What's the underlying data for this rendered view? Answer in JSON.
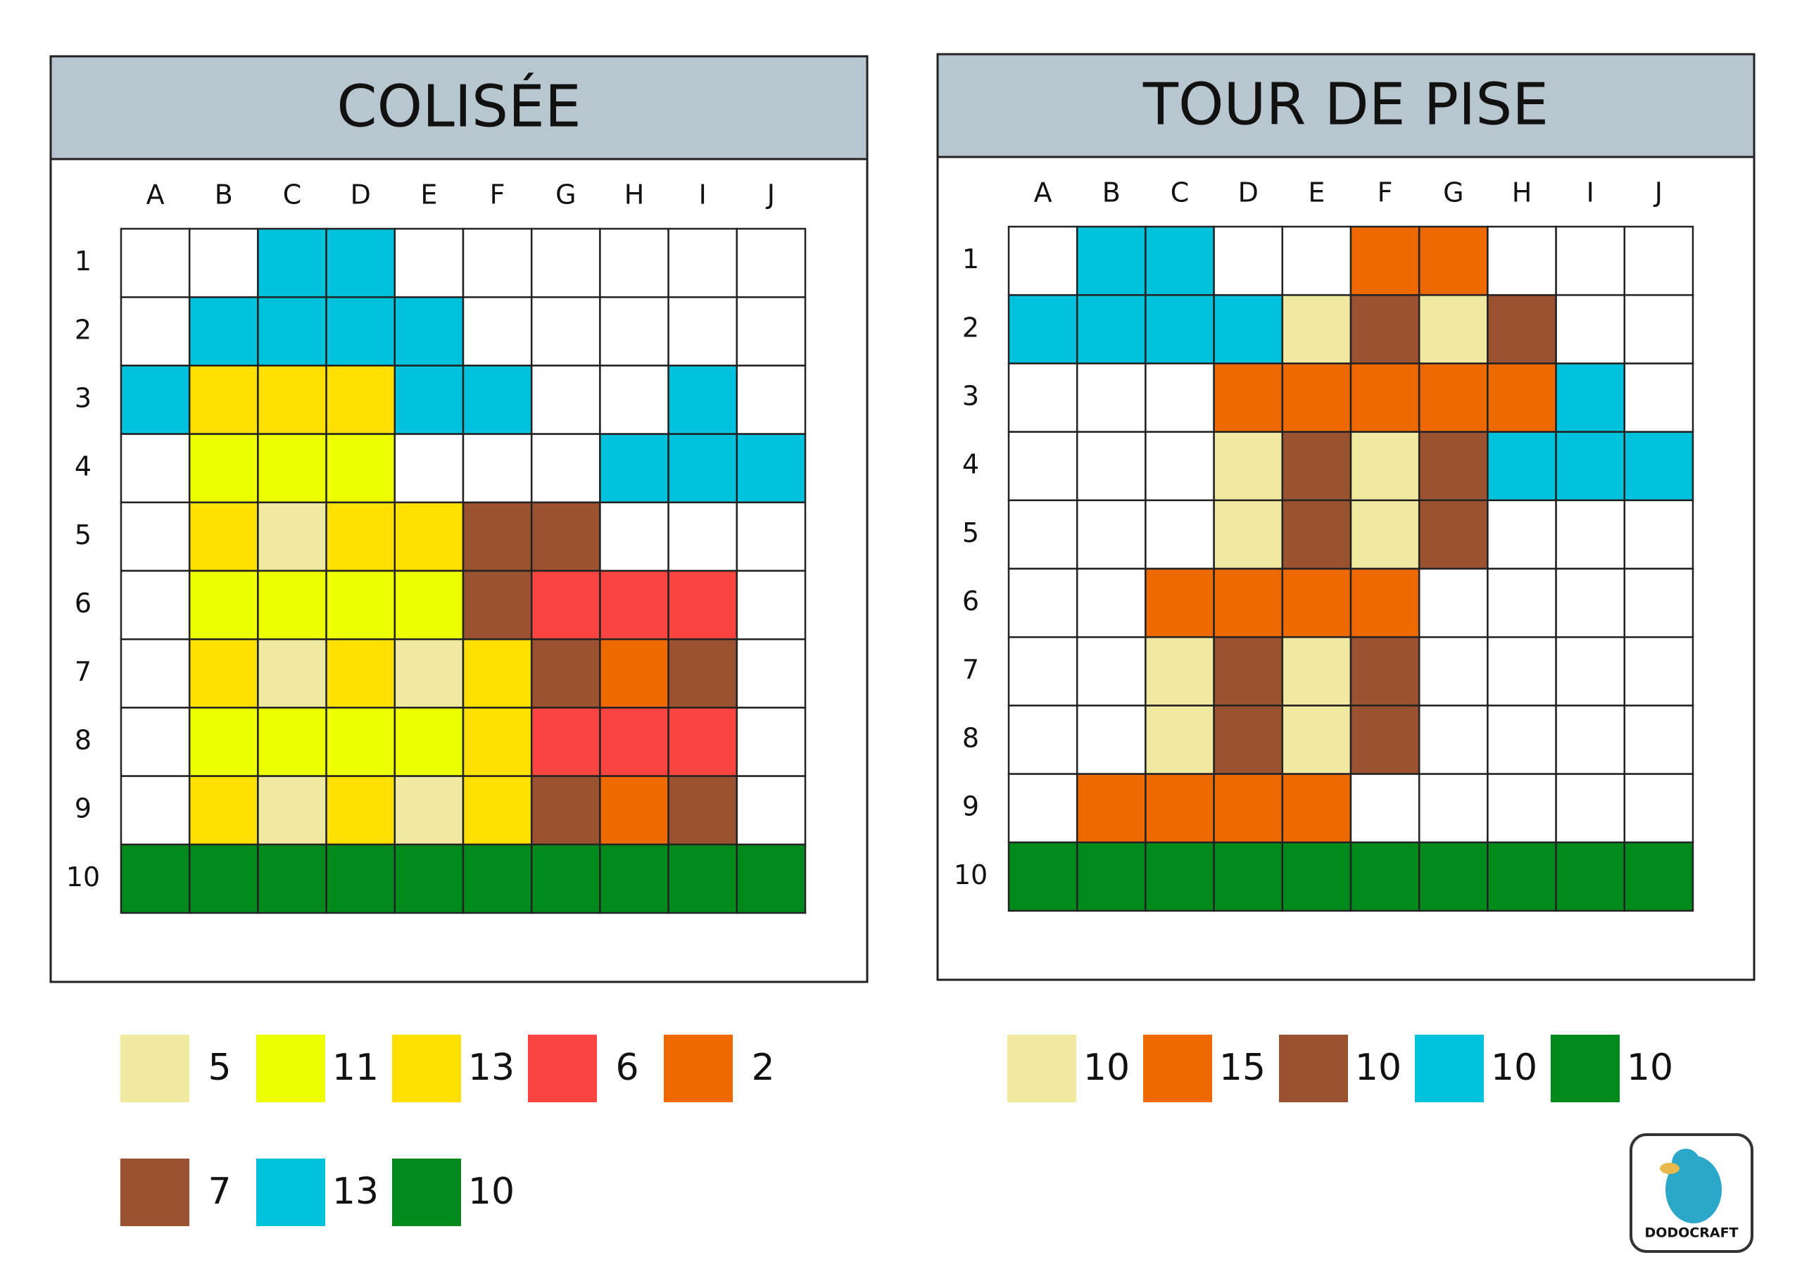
{
  "puzzles": [
    {
      "title": "COLISÉE",
      "columns": [
        "A",
        "B",
        "C",
        "D",
        "E",
        "F",
        "G",
        "H",
        "I",
        "J"
      ],
      "rows": [
        "1",
        "2",
        "3",
        "4",
        "5",
        "6",
        "7",
        "8",
        "9",
        "10"
      ],
      "grid": [
        [
          "#ffffff",
          "#ffffff",
          "#00c2dd",
          "#00c2dd",
          "#ffffff",
          "#ffffff",
          "#ffffff",
          "#ffffff",
          "#ffffff",
          "#ffffff"
        ],
        [
          "#ffffff",
          "#00c2dd",
          "#00c2dd",
          "#00c2dd",
          "#00c2dd",
          "#ffffff",
          "#ffffff",
          "#ffffff",
          "#ffffff",
          "#ffffff"
        ],
        [
          "#00c2dd",
          "#ffe000",
          "#ffe000",
          "#ffe000",
          "#00c2dd",
          "#00c2dd",
          "#ffffff",
          "#ffffff",
          "#00c2dd",
          "#ffffff"
        ],
        [
          "#ffffff",
          "#eeff00",
          "#eeff00",
          "#eeff00",
          "#ffffff",
          "#ffffff",
          "#ffffff",
          "#00c2dd",
          "#00c2dd",
          "#00c2dd"
        ],
        [
          "#ffffff",
          "#ffe000",
          "#f0e9a0",
          "#ffe000",
          "#ffe000",
          "#9a5230",
          "#9a5230",
          "#ffffff",
          "#ffffff",
          "#ffffff"
        ],
        [
          "#ffffff",
          "#eeff00",
          "#eeff00",
          "#eeff00",
          "#eeff00",
          "#9a5230",
          "#f94440",
          "#f94440",
          "#f94440",
          "#ffffff"
        ],
        [
          "#ffffff",
          "#ffe000",
          "#f0e9a0",
          "#ffe000",
          "#f0e9a0",
          "#ffe000",
          "#9a5230",
          "#ee6a00",
          "#9a5230",
          "#ffffff"
        ],
        [
          "#ffffff",
          "#eeff00",
          "#eeff00",
          "#eeff00",
          "#eeff00",
          "#ffe000",
          "#f94440",
          "#f94440",
          "#f94440",
          "#ffffff"
        ],
        [
          "#ffffff",
          "#ffe000",
          "#f0e9a0",
          "#ffe000",
          "#f0e9a0",
          "#ffe000",
          "#9a5230",
          "#ee6a00",
          "#9a5230",
          "#ffffff"
        ],
        [
          "#008a1c",
          "#008a1c",
          "#008a1c",
          "#008a1c",
          "#008a1c",
          "#008a1c",
          "#008a1c",
          "#008a1c",
          "#008a1c",
          "#008a1c"
        ]
      ],
      "legend": [
        {
          "color": "#f0e9a0",
          "count": 5
        },
        {
          "color": "#eeff00",
          "count": 11
        },
        {
          "color": "#ffe000",
          "count": 13
        },
        {
          "color": "#f94440",
          "count": 6
        },
        {
          "color": "#ee6a00",
          "count": 2
        },
        {
          "color": "#9a5230",
          "count": 7
        },
        {
          "color": "#00c2dd",
          "count": 13
        },
        {
          "color": "#008a1c",
          "count": 10
        }
      ]
    },
    {
      "title": "TOUR DE PISE",
      "columns": [
        "A",
        "B",
        "C",
        "D",
        "E",
        "F",
        "G",
        "H",
        "I",
        "J"
      ],
      "rows": [
        "1",
        "2",
        "3",
        "4",
        "5",
        "6",
        "7",
        "8",
        "9",
        "10"
      ],
      "grid": [
        [
          "#ffffff",
          "#00c2dd",
          "#00c2dd",
          "#ffffff",
          "#ffffff",
          "#ee6a00",
          "#ee6a00",
          "#ffffff",
          "#ffffff",
          "#ffffff"
        ],
        [
          "#00c2dd",
          "#00c2dd",
          "#00c2dd",
          "#00c2dd",
          "#f0e9a0",
          "#9a5230",
          "#f0e9a0",
          "#9a5230",
          "#ffffff",
          "#ffffff"
        ],
        [
          "#ffffff",
          "#ffffff",
          "#ffffff",
          "#ee6a00",
          "#ee6a00",
          "#ee6a00",
          "#ee6a00",
          "#ee6a00",
          "#00c2dd",
          "#ffffff"
        ],
        [
          "#ffffff",
          "#ffffff",
          "#ffffff",
          "#f0e9a0",
          "#9a5230",
          "#f0e9a0",
          "#9a5230",
          "#00c2dd",
          "#00c2dd",
          "#00c2dd"
        ],
        [
          "#ffffff",
          "#ffffff",
          "#ffffff",
          "#f0e9a0",
          "#9a5230",
          "#f0e9a0",
          "#9a5230",
          "#ffffff",
          "#ffffff",
          "#ffffff"
        ],
        [
          "#ffffff",
          "#ffffff",
          "#ee6a00",
          "#ee6a00",
          "#ee6a00",
          "#ee6a00",
          "#ffffff",
          "#ffffff",
          "#ffffff",
          "#ffffff"
        ],
        [
          "#ffffff",
          "#ffffff",
          "#f0e9a0",
          "#9a5230",
          "#f0e9a0",
          "#9a5230",
          "#ffffff",
          "#ffffff",
          "#ffffff",
          "#ffffff"
        ],
        [
          "#ffffff",
          "#ffffff",
          "#f0e9a0",
          "#9a5230",
          "#f0e9a0",
          "#9a5230",
          "#ffffff",
          "#ffffff",
          "#ffffff",
          "#ffffff"
        ],
        [
          "#ffffff",
          "#ee6a00",
          "#ee6a00",
          "#ee6a00",
          "#ee6a00",
          "#ffffff",
          "#ffffff",
          "#ffffff",
          "#ffffff",
          "#ffffff"
        ],
        [
          "#008a1c",
          "#008a1c",
          "#008a1c",
          "#008a1c",
          "#008a1c",
          "#008a1c",
          "#008a1c",
          "#008a1c",
          "#008a1c",
          "#008a1c"
        ]
      ],
      "legend": [
        {
          "color": "#f0e9a0",
          "count": 10
        },
        {
          "color": "#ee6a00",
          "count": 15
        },
        {
          "color": "#9a5230",
          "count": 10
        },
        {
          "color": "#00c2dd",
          "count": 10
        },
        {
          "color": "#008a1c",
          "count": 10
        }
      ]
    }
  ],
  "logo": "DODOCRAFT"
}
